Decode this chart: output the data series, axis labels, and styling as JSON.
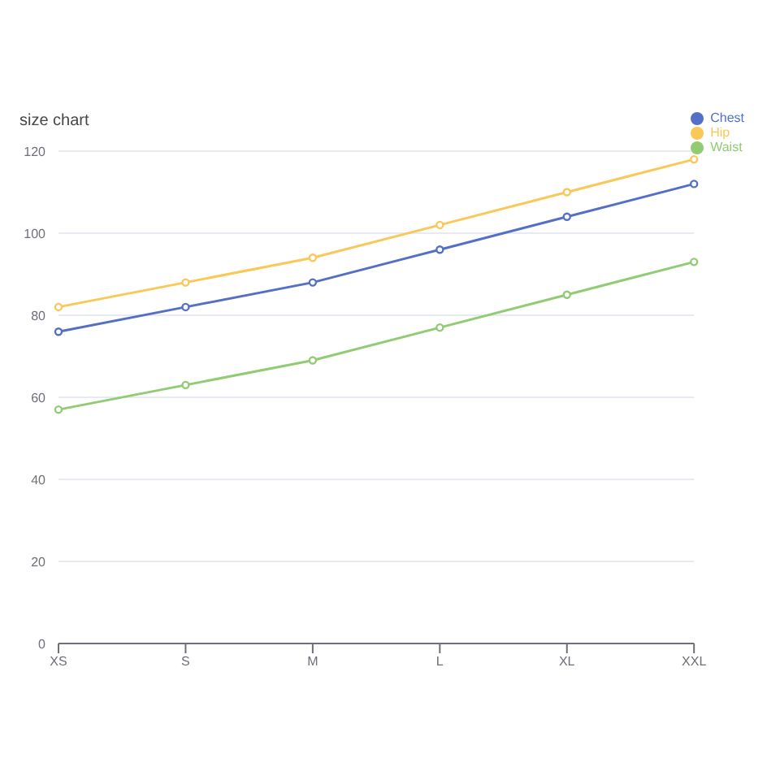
{
  "chart_data": {
    "type": "line",
    "title": "size chart",
    "categories": [
      "XS",
      "S",
      "M",
      "L",
      "XL",
      "XXL"
    ],
    "series": [
      {
        "name": "Chest",
        "color": "#5470c6",
        "values": [
          76,
          82,
          88,
          96,
          104,
          112
        ]
      },
      {
        "name": "Waist",
        "color": "#91cc75",
        "values": [
          57,
          63,
          69,
          77,
          85,
          93
        ]
      },
      {
        "name": "Hip",
        "color": "#fac858",
        "values": [
          82,
          88,
          94,
          102,
          110,
          118
        ]
      }
    ],
    "ylim": [
      0,
      120
    ],
    "yticks": [
      0,
      20,
      40,
      60,
      80,
      100,
      120
    ],
    "grid": "y",
    "legend": "top right",
    "marker": "circle"
  }
}
